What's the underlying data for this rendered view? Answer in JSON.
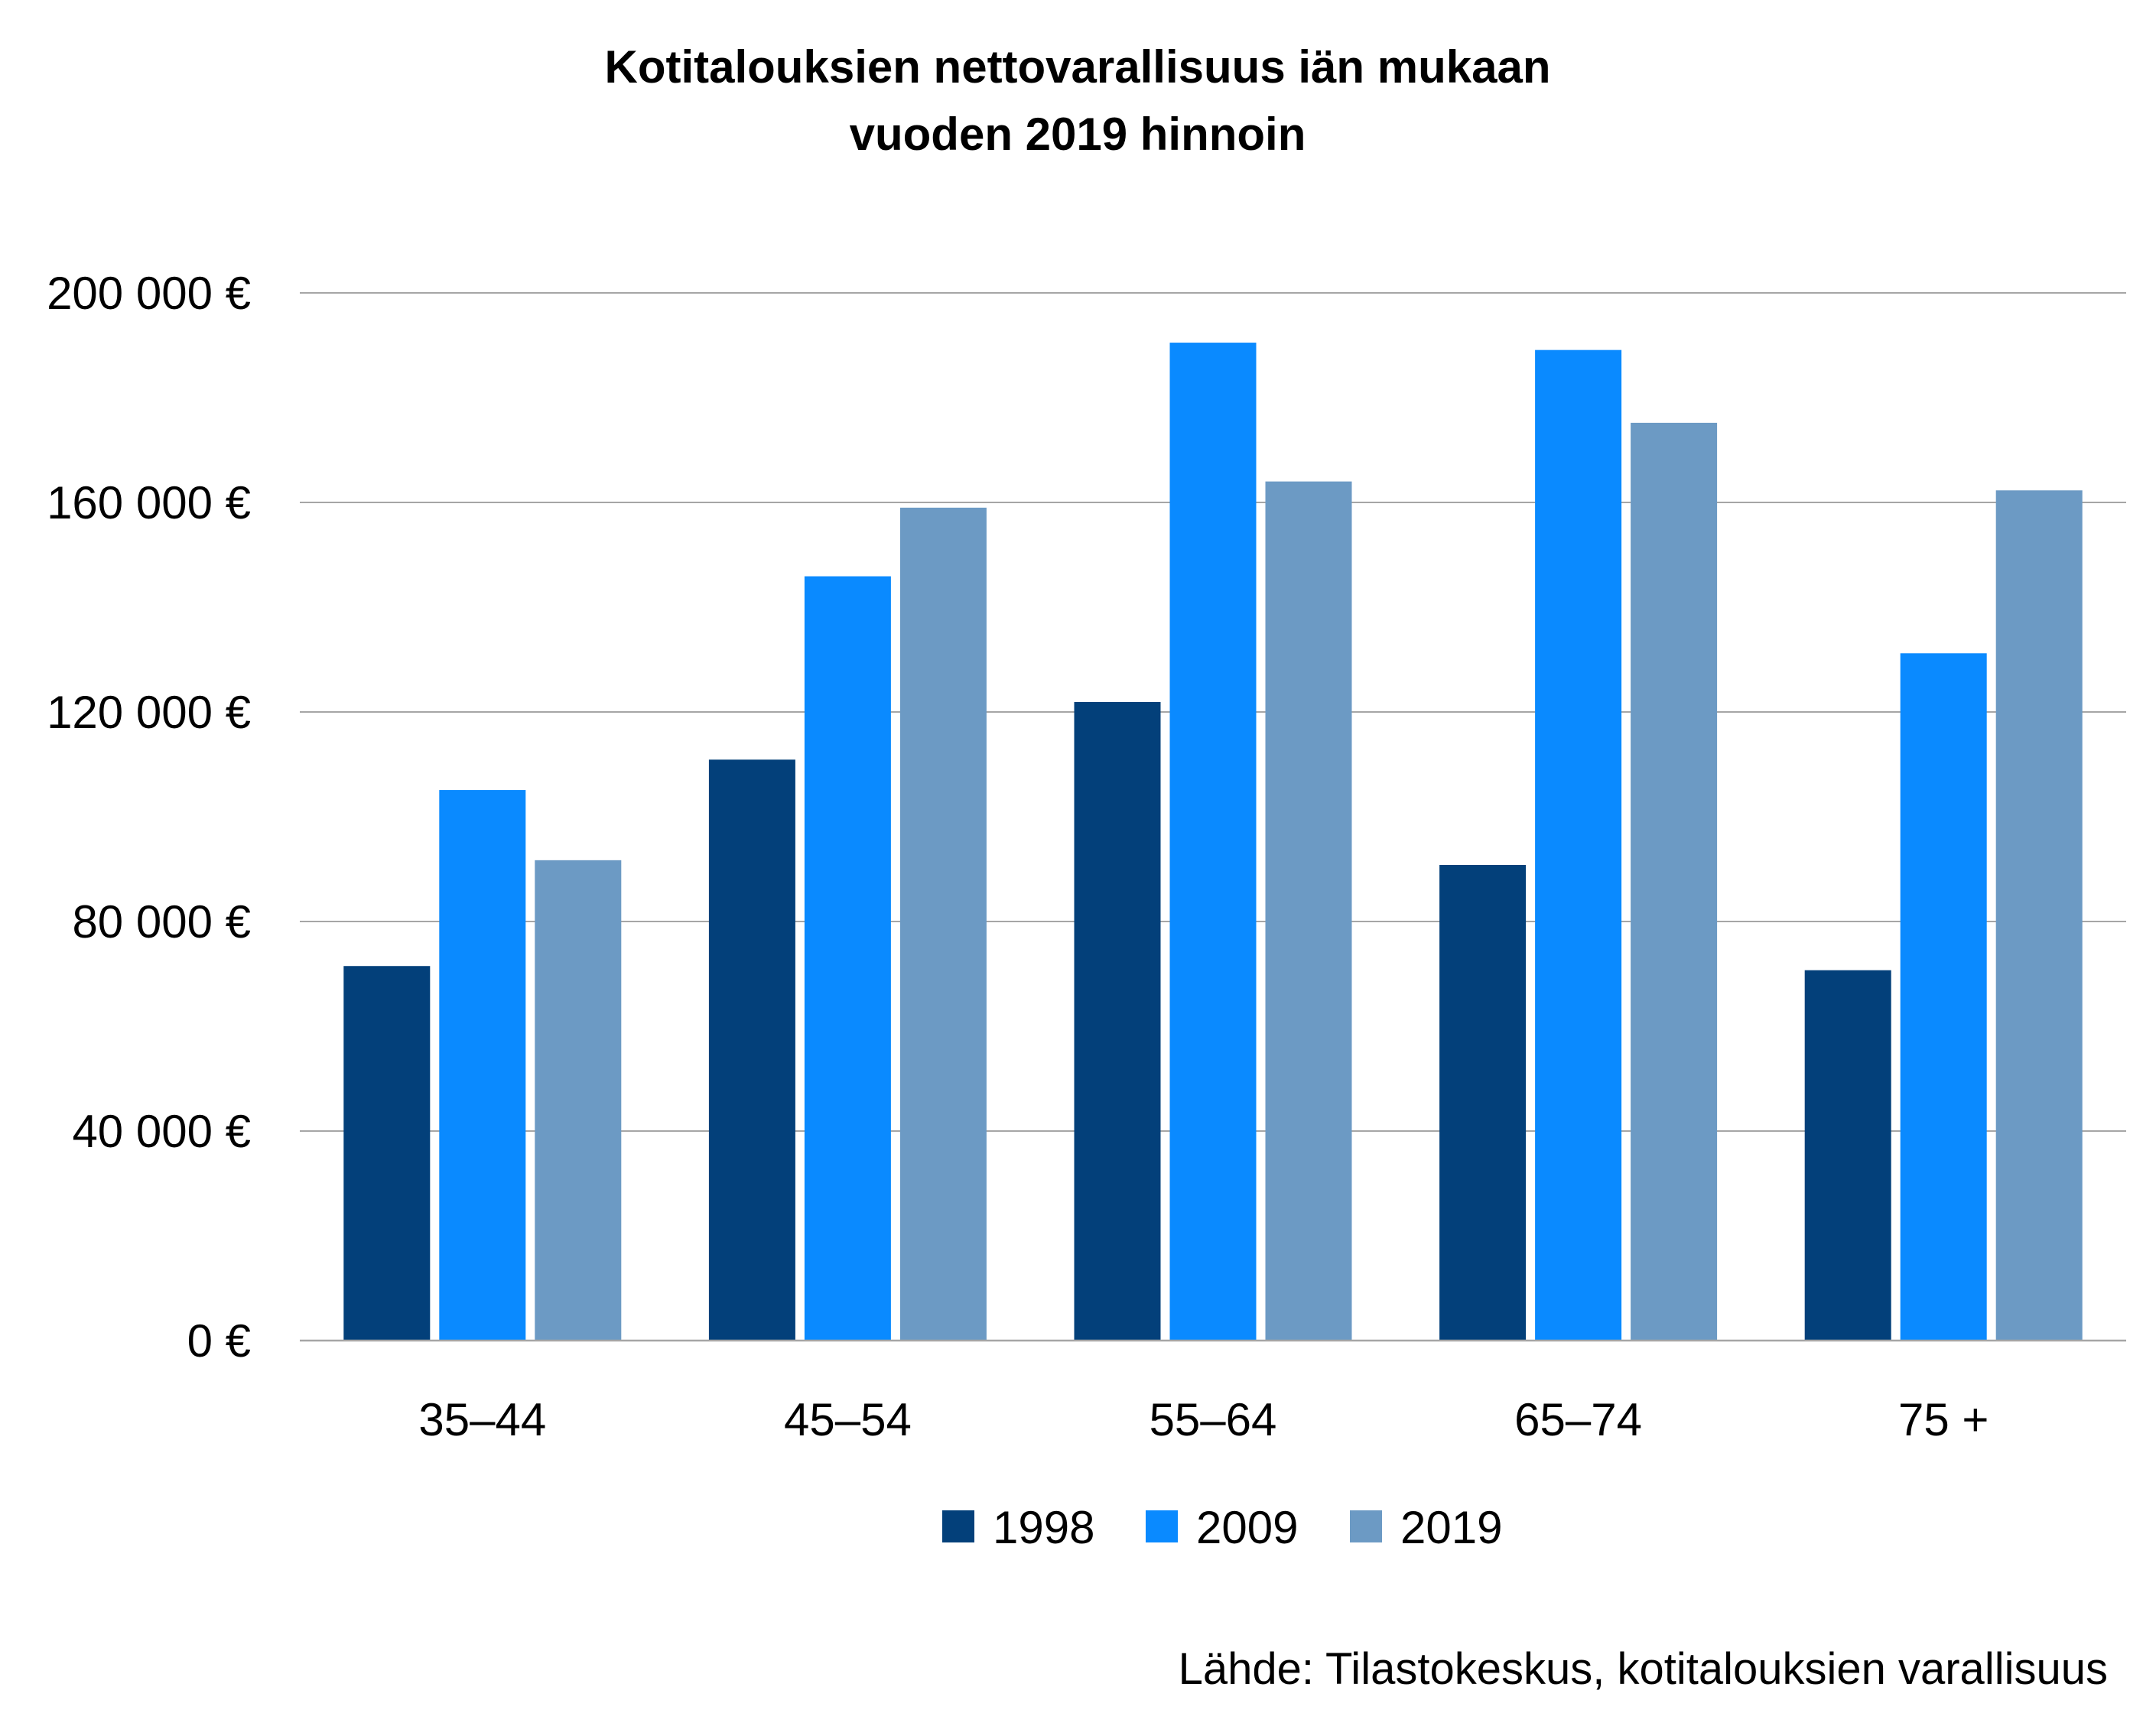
{
  "chart_data": {
    "type": "bar",
    "title_lines": [
      "Kotitalouksien nettovarallisuus iän mukaan",
      "vuoden 2019 hinnoin"
    ],
    "categories": [
      "35–44",
      "45–54",
      "55–64",
      "65–74",
      "75 +"
    ],
    "series": [
      {
        "name": "1998",
        "color": "#03407a",
        "values": [
          71500,
          110900,
          121900,
          90800,
          70700
        ]
      },
      {
        "name": "2009",
        "color": "#0a8aff",
        "values": [
          105100,
          145900,
          190500,
          189100,
          131200
        ]
      },
      {
        "name": "2019",
        "color": "#6c9ac4",
        "values": [
          91700,
          159000,
          164000,
          175200,
          162300
        ]
      }
    ],
    "ylim": [
      0,
      200000
    ],
    "yticks": [
      0,
      40000,
      80000,
      120000,
      160000,
      200000
    ],
    "ytick_labels": [
      "0 €",
      "40 000 €",
      "80 000 €",
      "120 000 €",
      "160 000 €",
      "200 000 €"
    ],
    "grid": true,
    "legend_position": "bottom",
    "source": "Lähde: Tilastokeskus, kotitalouksien varallisuus"
  }
}
